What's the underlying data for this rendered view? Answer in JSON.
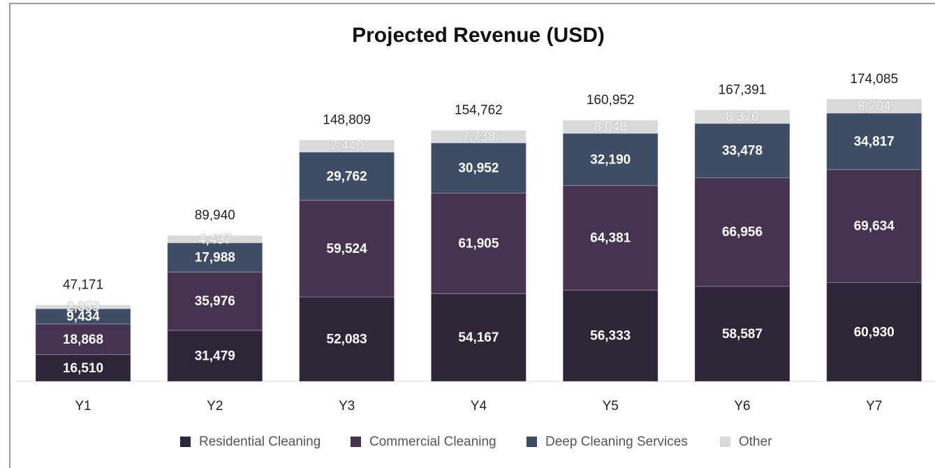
{
  "chart_data": {
    "type": "stacked_bar",
    "title": "Projected Revenue (USD)",
    "categories": [
      "Y1",
      "Y2",
      "Y3",
      "Y4",
      "Y5",
      "Y6",
      "Y7"
    ],
    "series": [
      {
        "name": "Residential Cleaning",
        "color": "#2e2638",
        "values": [
          16510,
          31479,
          52083,
          54167,
          56333,
          58587,
          60930
        ],
        "value_labels": [
          "16,510",
          "31,479",
          "52,083",
          "54,167",
          "56,333",
          "58,587",
          "60,930"
        ]
      },
      {
        "name": "Commercial Cleaning",
        "color": "#45334f",
        "values": [
          18868,
          35976,
          59524,
          61905,
          64381,
          66956,
          69634
        ],
        "value_labels": [
          "18,868",
          "35,976",
          "59,524",
          "61,905",
          "64,381",
          "66,956",
          "69,634"
        ]
      },
      {
        "name": "Deep Cleaning Services",
        "color": "#3e4d66",
        "values": [
          9434,
          17988,
          29762,
          30952,
          32190,
          33478,
          34817
        ],
        "value_labels": [
          "9,434",
          "17,988",
          "29,762",
          "30,952",
          "32,190",
          "33,478",
          "34,817"
        ]
      },
      {
        "name": "Other",
        "color": "#d9d9d9",
        "values": [
          2359,
          4497,
          7440,
          7738,
          8048,
          8370,
          8704
        ],
        "value_labels": [
          "2,359",
          "4,497",
          "7,440",
          "7,738",
          "8,048",
          "8,370",
          "8,704"
        ]
      }
    ],
    "totals": [
      47171,
      89940,
      148809,
      154762,
      160952,
      167391,
      174085
    ],
    "total_labels": [
      "47,171",
      "89,940",
      "148,809",
      "154,762",
      "160,952",
      "167,391",
      "174,085"
    ],
    "ylim": [
      0,
      180000
    ],
    "legend": "bottom"
  }
}
